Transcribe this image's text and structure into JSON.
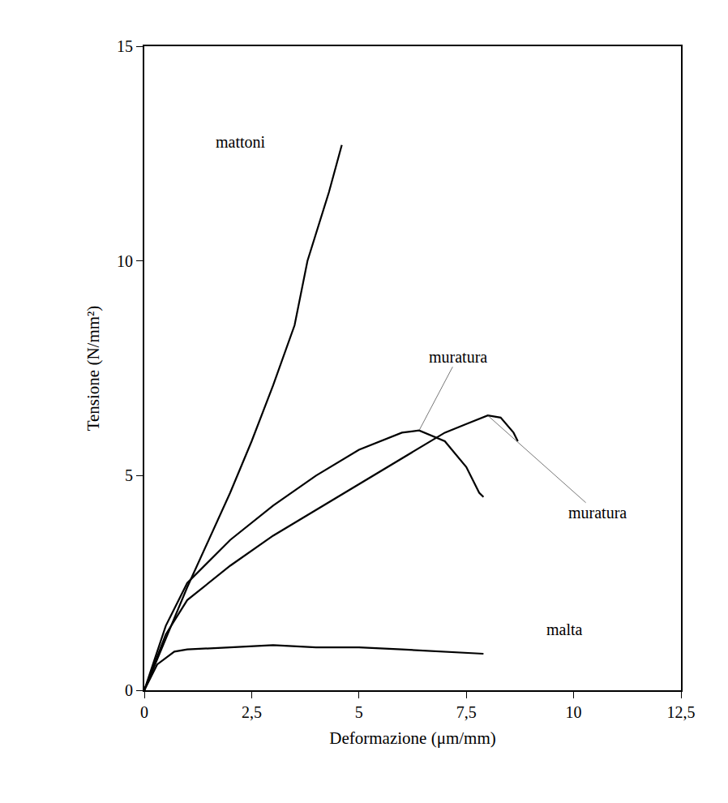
{
  "chart_data": {
    "type": "line",
    "x_label": "Deformazione (μm/mm)",
    "y_label": "Tensione (N/mm²)",
    "xlim": [
      0,
      12.5
    ],
    "xticks": [
      0,
      {
        "value": 2.5,
        "label": "2,5"
      },
      5,
      {
        "value": 7.5,
        "label": "7,5"
      },
      10,
      {
        "value": 12.5,
        "label": "12,5"
      }
    ],
    "ylim": [
      0,
      15
    ],
    "yticks": [
      0,
      5,
      10,
      15
    ],
    "grid": false,
    "series": [
      {
        "name": "mattoni",
        "color": "#000000",
        "x": [
          0,
          1,
          2,
          2.5,
          3,
          3.5,
          3.8,
          4.3,
          4.6
        ],
        "values": [
          0,
          2.4,
          4.6,
          5.8,
          7.1,
          8.5,
          10,
          11.6,
          12.7
        ]
      },
      {
        "name": "muratura",
        "color": "#000000",
        "x": [
          0,
          0.5,
          1,
          2,
          3,
          4,
          5,
          6,
          6.4,
          7,
          7.5,
          7.8,
          7.9
        ],
        "values": [
          0,
          1.5,
          2.5,
          3.5,
          4.3,
          5.0,
          5.6,
          6.0,
          6.05,
          5.8,
          5.2,
          4.6,
          4.5
        ]
      },
      {
        "name": "muratura",
        "color": "#000000",
        "x": [
          0,
          0.5,
          1,
          2,
          3,
          4,
          5,
          6,
          7,
          7.5,
          8,
          8.3,
          8.6,
          8.7
        ],
        "values": [
          0,
          1.3,
          2.1,
          2.9,
          3.6,
          4.2,
          4.8,
          5.4,
          6.0,
          6.2,
          6.4,
          6.35,
          6.0,
          5.8
        ]
      },
      {
        "name": "malta",
        "color": "#000000",
        "x": [
          0,
          0.3,
          0.7,
          1,
          2,
          3,
          4,
          5,
          6,
          7,
          7.9
        ],
        "values": [
          0,
          0.6,
          0.9,
          0.95,
          1.0,
          1.05,
          1.0,
          1.0,
          0.95,
          0.9,
          0.85
        ]
      }
    ]
  }
}
